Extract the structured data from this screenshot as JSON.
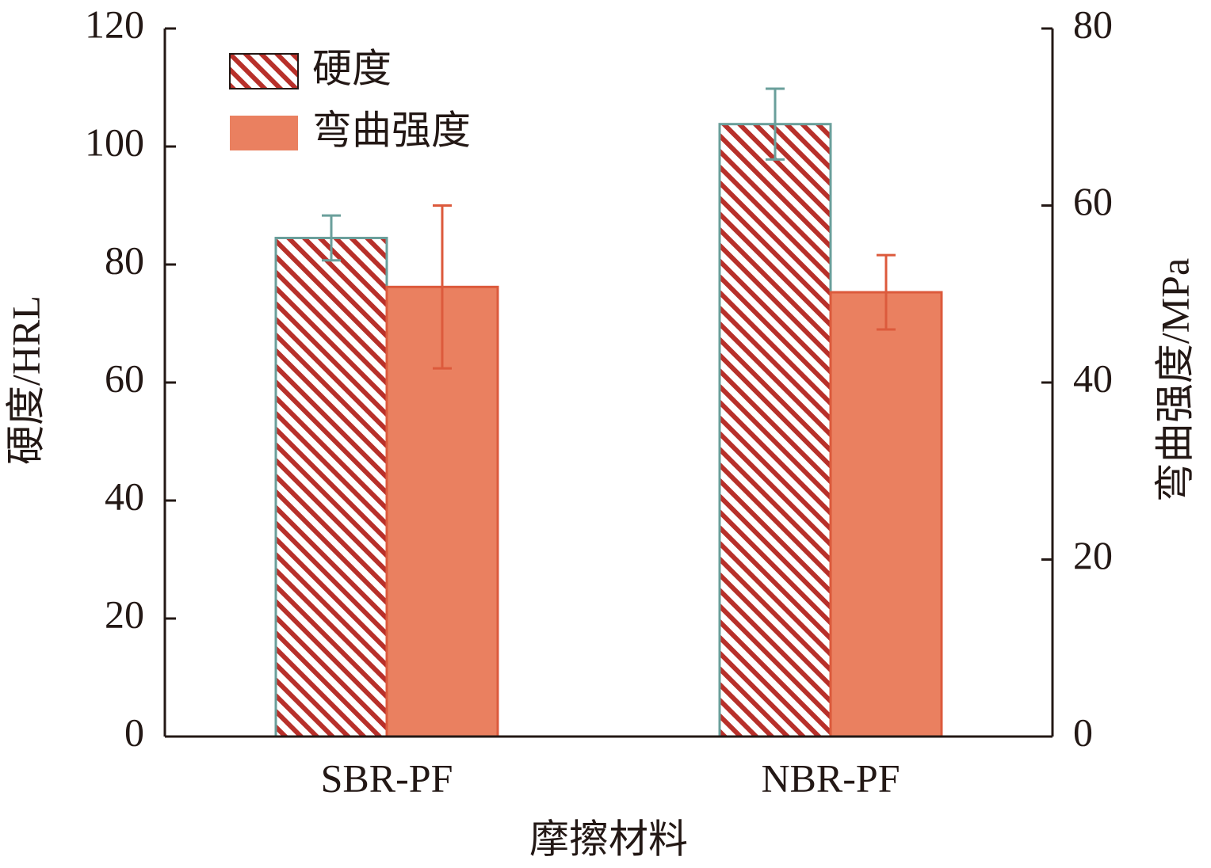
{
  "chart_data": {
    "type": "bar",
    "categories": [
      "SBR-PF",
      "NBR-PF"
    ],
    "x_label": "摩擦材料",
    "y_label": "硬度/HRL",
    "y2_label": "弯曲强度/MPa",
    "ylim": [
      0,
      120
    ],
    "yticks": [
      0,
      20,
      40,
      60,
      80,
      100,
      120
    ],
    "y2lim": [
      0,
      80
    ],
    "y2ticks": [
      0,
      20,
      40,
      60,
      80
    ],
    "legend": "upper left",
    "series": [
      {
        "name": "硬度",
        "color": "#b8302a",
        "pattern": "hatch",
        "edgecolor": "#6a9f9b",
        "values": [
          84.5,
          103.8
        ],
        "errors": [
          3.8,
          6.0
        ]
      },
      {
        "name": "弯曲强度",
        "color": "#ea8060",
        "edgecolor": "#dc5a3c",
        "axis": "y2",
        "values": [
          50.8,
          50.2
        ],
        "errors": [
          9.2,
          4.2
        ]
      }
    ]
  }
}
